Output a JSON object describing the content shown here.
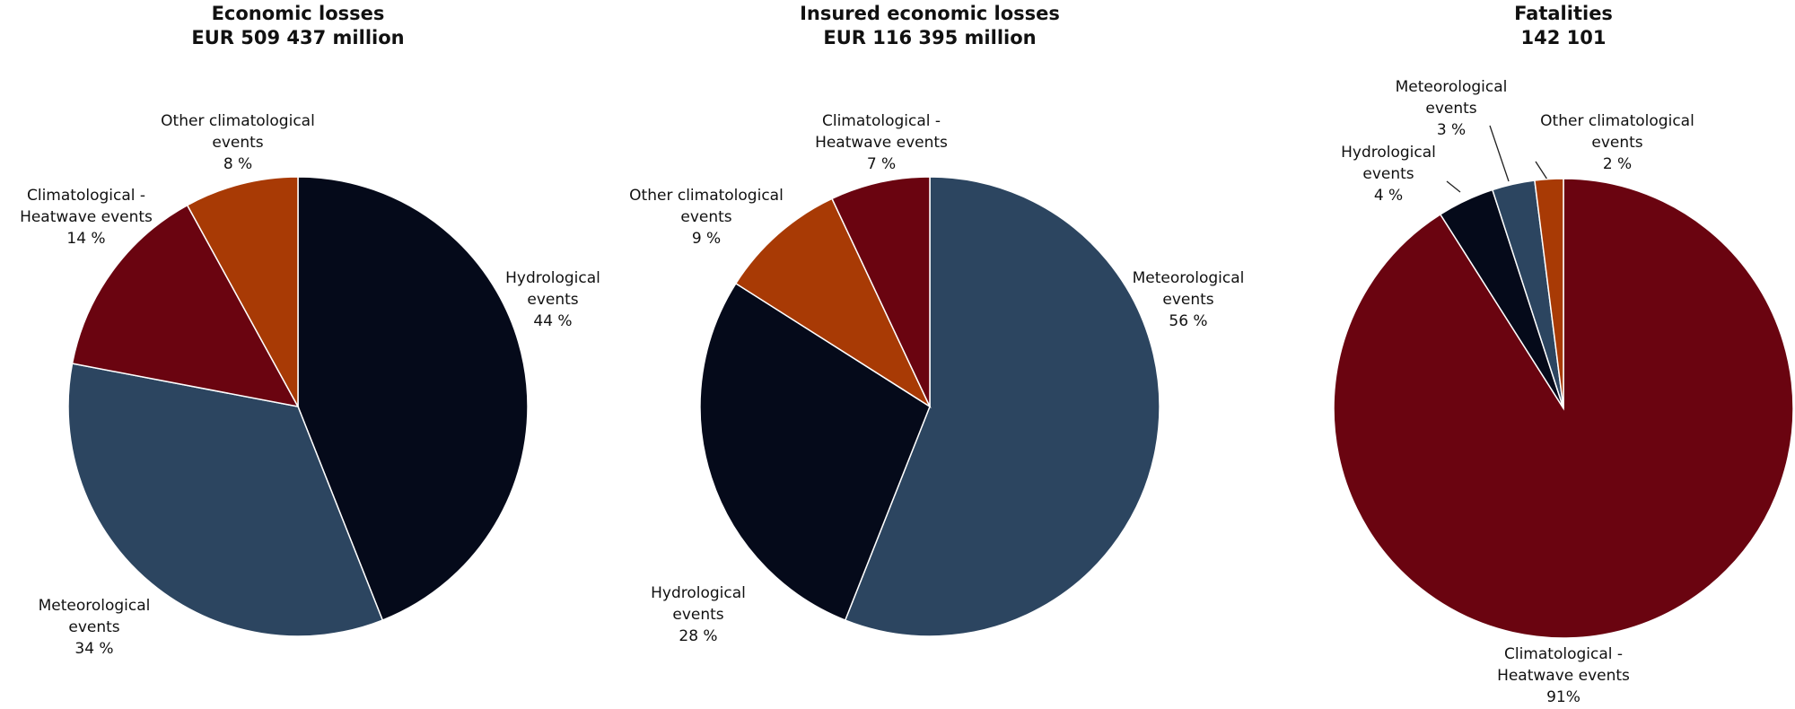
{
  "chart_data": [
    {
      "type": "pie",
      "title": "Economic losses",
      "subtitle": "EUR 509 437 million",
      "categories": [
        "Hydrological events",
        "Meteorological events",
        "Climatological - Heatwave events",
        "Other climatological events"
      ],
      "values": [
        44,
        34,
        14,
        8
      ],
      "value_labels": [
        "44 %",
        "34 %",
        "14 %",
        "8 %"
      ],
      "colors": [
        "#050a1a",
        "#2c4560",
        "#6a0410",
        "#a83a05"
      ]
    },
    {
      "type": "pie",
      "title": "Insured economic losses",
      "subtitle": "EUR 116 395 million",
      "categories": [
        "Meteorological events",
        "Hydrological events",
        "Other climatological events",
        "Climatological - Heatwave events"
      ],
      "values": [
        56,
        28,
        9,
        7
      ],
      "value_labels": [
        "56 %",
        "28 %",
        "9 %",
        "7 %"
      ],
      "colors": [
        "#2c4560",
        "#050a1a",
        "#a83a05",
        "#6a0410"
      ]
    },
    {
      "type": "pie",
      "title": "Fatalities",
      "subtitle": "142 101",
      "categories": [
        "Climatological - Heatwave events",
        "Hydrological events",
        "Meteorological events",
        "Other climatological events"
      ],
      "values": [
        91,
        4,
        3,
        2
      ],
      "value_labels": [
        "91%",
        "4 %",
        "3 %",
        "2 %"
      ],
      "colors": [
        "#6a0410",
        "#050a1a",
        "#2c4560",
        "#a83a05"
      ]
    }
  ]
}
